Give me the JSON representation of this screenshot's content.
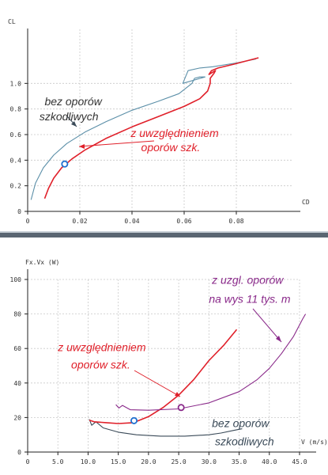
{
  "colors": {
    "blue": "#5b8fa8",
    "red": "#e0202a",
    "purple": "#8a2a8a",
    "dark": "#3a4a58",
    "marker": "#1e6fd0"
  },
  "chart_data": [
    {
      "type": "line",
      "title": "",
      "xlabel": "CD",
      "ylabel": "CL",
      "xlim": [
        0,
        0.09
      ],
      "ylim": [
        0,
        1.2
      ],
      "grid": true,
      "x_ticks": [
        "0",
        "0.02",
        "0.04",
        "0.06",
        "0.08"
      ],
      "y_ticks": [
        "0",
        "0.2",
        "0.4",
        "0.6",
        "0.8",
        "1.0"
      ],
      "series": [
        {
          "name": "bez oporów szkodliwych",
          "color": "#5b8fa8",
          "points": [
            [
              0.0013,
              0.09
            ],
            [
              0.003,
              0.22
            ],
            [
              0.006,
              0.34
            ],
            [
              0.01,
              0.44
            ],
            [
              0.015,
              0.53
            ],
            [
              0.022,
              0.62
            ],
            [
              0.03,
              0.7
            ],
            [
              0.04,
              0.79
            ],
            [
              0.05,
              0.86
            ],
            [
              0.058,
              0.92
            ],
            [
              0.063,
              1.0
            ],
            [
              0.064,
              1.04
            ],
            [
              0.066,
              1.05
            ],
            [
              0.068,
              1.05
            ],
            [
              0.0595,
              1.0
            ],
            [
              0.0615,
              1.1
            ],
            [
              0.066,
              1.12
            ],
            [
              0.071,
              1.13
            ],
            [
              0.08,
              1.16
            ],
            [
              0.0875,
              1.19
            ]
          ]
        },
        {
          "name": "z uwzględnieniem oporów szk.",
          "color": "#e0202a",
          "points": [
            [
              0.0065,
              0.1
            ],
            [
              0.008,
              0.18
            ],
            [
              0.01,
              0.26
            ],
            [
              0.013,
              0.34
            ],
            [
              0.017,
              0.41
            ],
            [
              0.022,
              0.48
            ],
            [
              0.03,
              0.57
            ],
            [
              0.04,
              0.66
            ],
            [
              0.05,
              0.74
            ],
            [
              0.06,
              0.82
            ],
            [
              0.066,
              0.88
            ],
            [
              0.069,
              0.94
            ],
            [
              0.07,
              1.0
            ],
            [
              0.07,
              1.04
            ],
            [
              0.0715,
              1.08
            ],
            [
              0.072,
              1.1
            ],
            [
              0.0695,
              1.07
            ],
            [
              0.0705,
              1.1
            ],
            [
              0.073,
              1.12
            ],
            [
              0.079,
              1.15
            ],
            [
              0.0885,
              1.2
            ]
          ]
        }
      ],
      "marker": {
        "x": 0.0142,
        "y": 0.37
      },
      "annotations": [
        {
          "text": "bez oporów",
          "x": 0.0065,
          "y": 0.83
        },
        {
          "text": "szkodliwych",
          "x": 0.0045,
          "y": 0.71
        },
        {
          "text": "z uwzględnieniem",
          "x": 0.0395,
          "y": 0.58
        },
        {
          "text": "oporów szk.",
          "x": 0.0435,
          "y": 0.47
        }
      ]
    },
    {
      "type": "line",
      "title": "",
      "xlabel": "V (m/s)",
      "ylabel": "Fx.Vx (W)",
      "xlim": [
        0,
        45
      ],
      "ylim": [
        0,
        100
      ],
      "grid": true,
      "x_ticks": [
        "0",
        "5.0",
        "10.0",
        "15.0",
        "20.0",
        "25.0",
        "30.0",
        "35.0",
        "40.0",
        "45.0"
      ],
      "y_ticks": [
        "0",
        "20",
        "40",
        "60",
        "80",
        "100"
      ],
      "series": [
        {
          "name": "bez oporów szkodliwych",
          "color": "#3a4a58",
          "points": [
            [
              10.2,
              19
            ],
            [
              10.6,
              15.5
            ],
            [
              11.3,
              17.5
            ],
            [
              12.5,
              14
            ],
            [
              15,
              11.5
            ],
            [
              18,
              10
            ],
            [
              22,
              9.2
            ],
            [
              26,
              9.2
            ],
            [
              30,
              10
            ],
            [
              32,
              11
            ],
            [
              34,
              12.5
            ],
            [
              35.5,
              13.5
            ]
          ]
        },
        {
          "name": "z uwzględnieniem oporów szk.",
          "color": "#e0202a",
          "points": [
            [
              10.2,
              18.5
            ],
            [
              11,
              17.5
            ],
            [
              13,
              17
            ],
            [
              15,
              16.5
            ],
            [
              17.5,
              17
            ],
            [
              20,
              20.5
            ],
            [
              22.5,
              26
            ],
            [
              25,
              33
            ],
            [
              27.5,
              42
            ],
            [
              30,
              53
            ],
            [
              32.5,
              62
            ],
            [
              34.6,
              71
            ]
          ]
        },
        {
          "name": "z uzgl. oporów na wys 11 tys. m",
          "color": "#8a2a8a",
          "points": [
            [
              14.6,
              27.5
            ],
            [
              15.1,
              25.5
            ],
            [
              15.7,
              27
            ],
            [
              17,
              24.5
            ],
            [
              20,
              24.2
            ],
            [
              25,
              25
            ],
            [
              30,
              28.5
            ],
            [
              35,
              35
            ],
            [
              38,
              42
            ],
            [
              40,
              48.5
            ],
            [
              42,
              57
            ],
            [
              44,
              67
            ],
            [
              45.5,
              77
            ],
            [
              46,
              80
            ]
          ]
        }
      ],
      "markers": [
        {
          "x": 17.6,
          "y": 18.2,
          "color": "#1e6fd0"
        },
        {
          "x": 25.4,
          "y": 25.8,
          "color": "#8a2a8a"
        }
      ],
      "annotations": [
        {
          "text": "z uzgl. oporów",
          "x": 30.5,
          "y": 97.5,
          "color": "#8a2a8a"
        },
        {
          "text": "na wys 11 tys. m",
          "x": 30.0,
          "y": 86.5,
          "color": "#8a2a8a"
        },
        {
          "text": "z uwzględnieniem",
          "x": 5.0,
          "y": 58.5,
          "color": "#e0202a"
        },
        {
          "text": "oporów szk.",
          "x": 7.2,
          "y": 48.5,
          "color": "#e0202a"
        },
        {
          "text": "bez oporów",
          "x": 30.5,
          "y": 14.5,
          "color": "#3a4a58"
        },
        {
          "text": "szkodliwych",
          "x": 31.0,
          "y": 4.0,
          "color": "#3a4a58"
        }
      ]
    }
  ]
}
